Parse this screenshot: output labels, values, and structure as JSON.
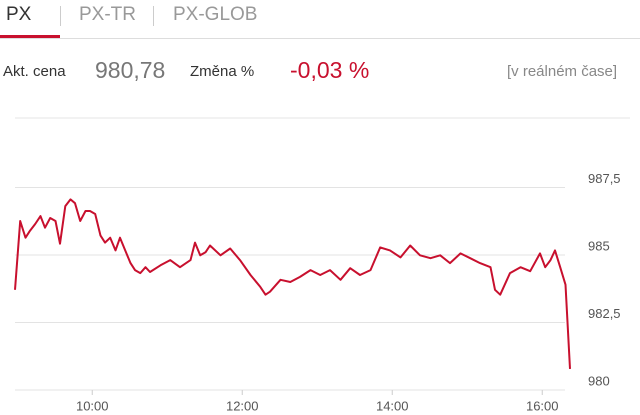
{
  "tabs": [
    "PX",
    "PX-TR",
    "PX-GLOB"
  ],
  "info": {
    "price_label": "Akt. cena",
    "price": "980,78",
    "change_label": "Změna %",
    "change": "-0,03 %",
    "note": "[v reálném čase]"
  },
  "chart_data": {
    "type": "line",
    "series": [
      {
        "color": "#c8102e",
        "x": [
          8.97,
          9.04,
          9.11,
          9.17,
          9.24,
          9.31,
          9.37,
          9.44,
          9.51,
          9.57,
          9.64,
          9.71,
          9.77,
          9.84,
          9.91,
          9.97,
          10.04,
          10.11,
          10.17,
          10.24,
          10.31,
          10.37,
          10.44,
          10.51,
          10.57,
          10.64,
          10.71,
          10.77,
          10.91,
          11.04,
          11.17,
          11.31,
          11.37,
          11.44,
          11.51,
          11.57,
          11.71,
          11.84,
          11.97,
          12.11,
          12.24,
          12.31,
          12.37,
          12.51,
          12.64,
          12.77,
          12.91,
          13.04,
          13.17,
          13.31,
          13.44,
          13.57,
          13.71,
          13.84,
          13.97,
          14.11,
          14.24,
          14.37,
          14.51,
          14.64,
          14.77,
          14.91,
          15.04,
          15.17,
          15.31,
          15.37,
          15.44,
          15.57,
          15.71,
          15.84,
          15.97,
          16.04,
          16.11,
          16.17,
          16.24,
          16.31,
          16.37
        ],
        "values": [
          983.71,
          986.26,
          985.64,
          985.9,
          986.15,
          986.44,
          986.01,
          986.37,
          986.26,
          985.42,
          986.81,
          987.06,
          986.92,
          986.26,
          986.63,
          986.63,
          986.52,
          985.72,
          985.46,
          985.64,
          985.17,
          985.64,
          985.17,
          984.7,
          984.44,
          984.33,
          984.55,
          984.37,
          984.62,
          984.81,
          984.55,
          984.81,
          985.46,
          984.99,
          985.1,
          985.35,
          984.99,
          985.24,
          984.81,
          984.26,
          983.82,
          983.53,
          983.64,
          984.08,
          984.0,
          984.19,
          984.44,
          984.26,
          984.44,
          984.08,
          984.51,
          984.26,
          984.44,
          985.28,
          985.17,
          984.91,
          985.35,
          984.99,
          984.88,
          984.99,
          984.7,
          985.06,
          984.88,
          984.7,
          984.55,
          983.71,
          983.53,
          984.33,
          984.55,
          984.4,
          985.06,
          984.55,
          984.81,
          985.17,
          984.55,
          983.9,
          980.78
        ]
      }
    ],
    "xlim": [
      8.97,
      16.37
    ],
    "xticks": [
      {
        "value": 10,
        "label": "10:00"
      },
      {
        "value": 12,
        "label": "12:00"
      },
      {
        "value": 14,
        "label": "14:00"
      },
      {
        "value": 16,
        "label": "16:00"
      }
    ],
    "ylim": [
      980,
      990
    ],
    "yticks": [
      980,
      {
        "value": 982.5,
        "label": "982,5"
      },
      985,
      {
        "value": 987.5,
        "label": "987,5"
      }
    ],
    "grid": true
  }
}
